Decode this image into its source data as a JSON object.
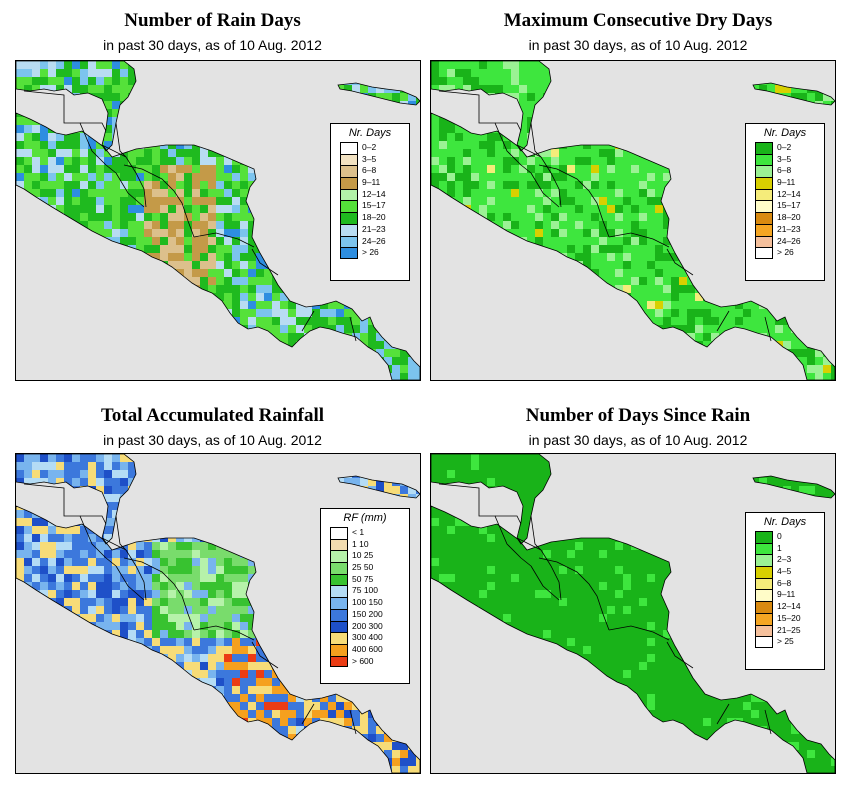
{
  "panels": [
    {
      "title": "Number of Rain Days",
      "subtitle": "in past 30 days, as of  10 Aug. 2012",
      "legend_title": "Nr. Days",
      "legend": [
        {
          "label": "0–2",
          "color": "#ffffff"
        },
        {
          "label": "3–5",
          "color": "#f2e2c2"
        },
        {
          "label": "6–8",
          "color": "#dcc08c"
        },
        {
          "label": "9–11",
          "color": "#c49a48"
        },
        {
          "label": "12–14",
          "color": "#b2f2a8"
        },
        {
          "label": "15–17",
          "color": "#55e13a"
        },
        {
          "label": "18–20",
          "color": "#1fba1f"
        },
        {
          "label": "21–23",
          "color": "#b8dcf2"
        },
        {
          "label": "24–26",
          "color": "#7cc4ee"
        },
        {
          "label": "> 26",
          "color": "#2e8ee0"
        }
      ]
    },
    {
      "title": "Maximum Consecutive Dry Days",
      "subtitle": "in past 30 days, as of  10 Aug. 2012",
      "legend_title": "Nr. Days",
      "legend": [
        {
          "label": "0–2",
          "color": "#19b319"
        },
        {
          "label": "3–5",
          "color": "#3ee63e"
        },
        {
          "label": "6–8",
          "color": "#9bf294"
        },
        {
          "label": "9–11",
          "color": "#d8d000"
        },
        {
          "label": "12–14",
          "color": "#f5ec7a"
        },
        {
          "label": "15–17",
          "color": "#fffcc8"
        },
        {
          "label": "18–20",
          "color": "#d98a10"
        },
        {
          "label": "21–23",
          "color": "#f5a623"
        },
        {
          "label": "24–26",
          "color": "#f5c09c"
        },
        {
          "label": "> 26",
          "color": "#ffffff"
        }
      ]
    },
    {
      "title": "Total Accumulated Rainfall",
      "subtitle": "in past 30 days, as of  10 Aug. 2012",
      "legend_title": "RF (mm)",
      "legend": [
        {
          "label": "< 1",
          "color": "#ffffff"
        },
        {
          "label": "1    10",
          "color": "#f2dcb0"
        },
        {
          "label": "10    25",
          "color": "#b6f2aa"
        },
        {
          "label": "25    50",
          "color": "#79dc6c"
        },
        {
          "label": "50    75",
          "color": "#38c230"
        },
        {
          "label": "75    100",
          "color": "#b4dcf5"
        },
        {
          "label": "100    150",
          "color": "#78b4ee"
        },
        {
          "label": "150    200",
          "color": "#3c78dc"
        },
        {
          "label": "200    300",
          "color": "#1e50c8"
        },
        {
          "label": "300    400",
          "color": "#f7dc78"
        },
        {
          "label": "400    600",
          "color": "#f5a01e"
        },
        {
          "label": "> 600",
          "color": "#eb3c14"
        }
      ]
    },
    {
      "title": "Number of Days Since Rain",
      "subtitle": "in past 30 days, as of  10 Aug. 2012",
      "legend_title": "Nr. Days",
      "legend": [
        {
          "label": "0",
          "color": "#19b319"
        },
        {
          "label": "1",
          "color": "#3ee63e"
        },
        {
          "label": "2–3",
          "color": "#9bf294"
        },
        {
          "label": "4–5",
          "color": "#d8d000"
        },
        {
          "label": "6–8",
          "color": "#f5ec7a"
        },
        {
          "label": "9–11",
          "color": "#fffcc8"
        },
        {
          "label": "12–14",
          "color": "#d98a10"
        },
        {
          "label": "15–20",
          "color": "#f5a623"
        },
        {
          "label": "21–25",
          "color": "#f5c09c"
        },
        {
          "label": "> 25",
          "color": "#ffffff"
        }
      ]
    }
  ],
  "map": {
    "ocean_color": "#e3e3e3",
    "border_color": "#000000"
  }
}
